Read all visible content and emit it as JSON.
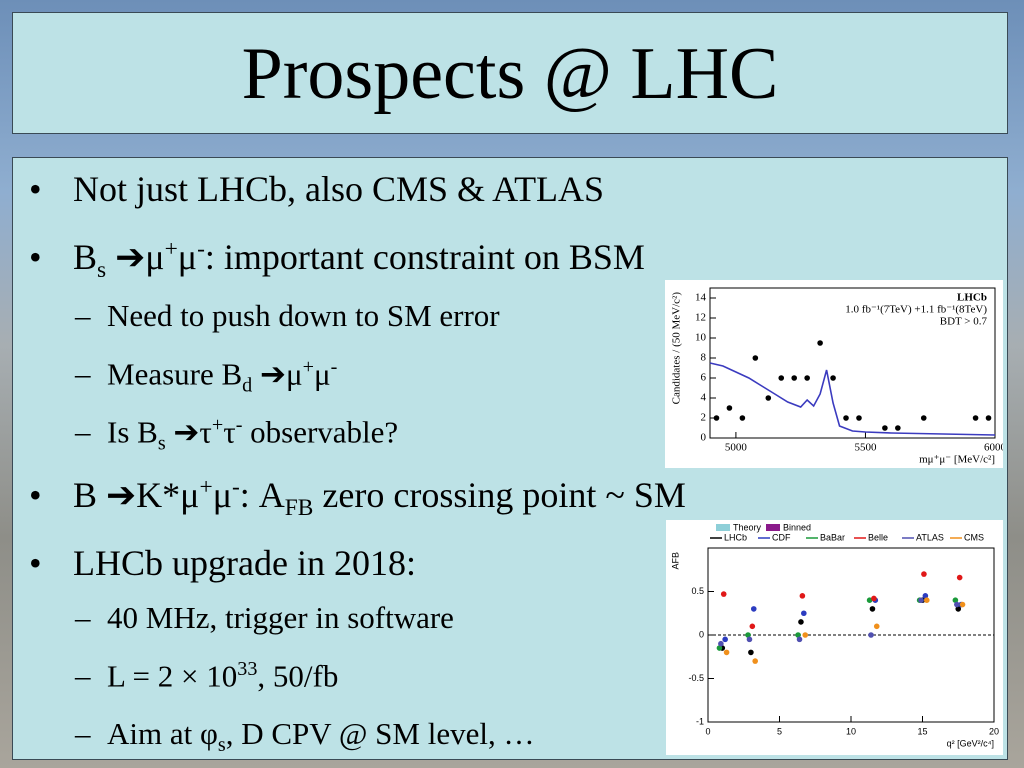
{
  "title": "Prospects @ LHC",
  "bullets": [
    {
      "level": 1,
      "marker": "•",
      "parts": [
        {
          "t": "Not just LHCb, also CMS & ATLAS"
        }
      ]
    },
    {
      "level": 1,
      "marker": "•",
      "parts": [
        {
          "t": "B"
        },
        {
          "sub": "s"
        },
        {
          "t": " ➔μ"
        },
        {
          "sup": "+"
        },
        {
          "t": "μ"
        },
        {
          "sup": "-"
        },
        {
          "t": ": important constraint on BSM"
        }
      ]
    },
    {
      "level": 2,
      "marker": "–",
      "parts": [
        {
          "t": "Need to push down to SM error"
        }
      ]
    },
    {
      "level": 2,
      "marker": "–",
      "parts": [
        {
          "t": "Measure B"
        },
        {
          "sub": "d"
        },
        {
          "t": " ➔μ"
        },
        {
          "sup": "+"
        },
        {
          "t": "μ"
        },
        {
          "sup": "-"
        }
      ]
    },
    {
      "level": 2,
      "marker": "–",
      "parts": [
        {
          "t": "Is B"
        },
        {
          "sub": "s"
        },
        {
          "t": " ➔τ"
        },
        {
          "sup": "+"
        },
        {
          "t": "τ"
        },
        {
          "sup": "-"
        },
        {
          "t": " observable?"
        }
      ]
    },
    {
      "level": 1,
      "marker": "•",
      "parts": [
        {
          "t": "B ➔K*μ"
        },
        {
          "sup": "+"
        },
        {
          "t": "μ"
        },
        {
          "sup": "-"
        },
        {
          "t": ": A"
        },
        {
          "sub": "FB"
        },
        {
          "t": " zero crossing point ~ SM"
        }
      ]
    },
    {
      "level": 1,
      "marker": "•",
      "parts": [
        {
          "t": "LHCb upgrade in 2018:"
        }
      ]
    },
    {
      "level": 2,
      "marker": "–",
      "parts": [
        {
          "t": "40 MHz, trigger in software"
        }
      ]
    },
    {
      "level": 2,
      "marker": "–",
      "parts": [
        {
          "t": "L = 2 × 10"
        },
        {
          "sup": "33"
        },
        {
          "t": ", 50/fb"
        }
      ]
    },
    {
      "level": 2,
      "marker": "–",
      "parts": [
        {
          "t": "Aim at φ"
        },
        {
          "sub": "s"
        },
        {
          "t": ", D CPV @ SM level, …"
        }
      ]
    }
  ],
  "chart_data": [
    {
      "type": "scatter",
      "labels": [
        "LHCb",
        "1.0 fb⁻¹(7TeV) +1.1 fb⁻¹(8TeV)",
        "BDT > 0.7"
      ],
      "x_label": "mμ⁺μ⁻ [MeV/c²]",
      "y_label": "Candidates / (50 MeV/c²)",
      "x": [
        4925,
        4975,
        5025,
        5075,
        5125,
        5175,
        5225,
        5275,
        5325,
        5375,
        5425,
        5475,
        5575,
        5625,
        5725,
        5925,
        5975
      ],
      "values": [
        2,
        3,
        2,
        8,
        4,
        6,
        6,
        6,
        9.5,
        6,
        2,
        2,
        1,
        1,
        2,
        2,
        2
      ],
      "color": "#000000",
      "fit": {
        "color": "#3b3bbf",
        "x": [
          4900,
          4950,
          5000,
          5050,
          5100,
          5150,
          5200,
          5250,
          5275,
          5300,
          5325,
          5350,
          5375,
          5400,
          5450,
          5500,
          5600,
          5800,
          6000
        ],
        "values": [
          7.5,
          7.2,
          6.6,
          6.0,
          5.2,
          4.4,
          3.6,
          3.1,
          3.8,
          3.2,
          4.4,
          6.8,
          3.5,
          1.2,
          0.7,
          0.6,
          0.5,
          0.4,
          0.3
        ]
      },
      "xlim": [
        4900,
        6000
      ],
      "xticks": [
        5000,
        5500,
        6000
      ],
      "ylim": [
        0,
        15
      ],
      "yticks": [
        0,
        2,
        4,
        6,
        8,
        10,
        12,
        14
      ]
    },
    {
      "type": "scatter",
      "y_label": "AFB",
      "x_label": "q² [GeV²/c⁴]",
      "legend": [
        {
          "name": "Theory",
          "color": "#8ecfd8"
        },
        {
          "name": "Binned",
          "color": "#8b1a8b"
        }
      ],
      "series": [
        {
          "name": "LHCb",
          "color": "#000000",
          "x": [
            1,
            3,
            6.5,
            11.5,
            15,
            17.5
          ],
          "values": [
            -0.15,
            -0.2,
            0.15,
            0.3,
            0.4,
            0.3
          ]
        },
        {
          "name": "CDF",
          "color": "#2c3cc0",
          "x": [
            1.2,
            3.2,
            6.7,
            11.7,
            15.2,
            17.7
          ],
          "values": [
            -0.05,
            0.3,
            0.25,
            0.4,
            0.45,
            0.35
          ]
        },
        {
          "name": "BaBar",
          "color": "#1a9a3a",
          "x": [
            0.8,
            2.8,
            6.3,
            11.3,
            14.8,
            17.3
          ],
          "values": [
            -0.15,
            0.0,
            0.0,
            0.4,
            0.4,
            0.4
          ]
        },
        {
          "name": "Belle",
          "color": "#e01818",
          "x": [
            1.1,
            3.1,
            6.6,
            11.6,
            15.1,
            17.6
          ],
          "values": [
            0.47,
            0.1,
            0.45,
            0.42,
            0.7,
            0.66
          ]
        },
        {
          "name": "ATLAS",
          "color": "#5050b0",
          "x": [
            0.9,
            2.9,
            6.4,
            11.4,
            14.9,
            17.4
          ],
          "values": [
            -0.1,
            -0.05,
            -0.05,
            0.0,
            0.4,
            0.35
          ]
        },
        {
          "name": "CMS",
          "color": "#f0901c",
          "x": [
            1.3,
            3.3,
            6.8,
            11.8,
            15.3,
            17.8
          ],
          "values": [
            -0.2,
            -0.3,
            0.0,
            0.1,
            0.4,
            0.35
          ]
        }
      ],
      "xlim": [
        0,
        20
      ],
      "xticks": [
        0,
        5,
        10,
        15,
        20
      ],
      "ylim": [
        -1,
        1
      ],
      "yticks": [
        -1,
        -0.5,
        0,
        0.5
      ]
    }
  ]
}
